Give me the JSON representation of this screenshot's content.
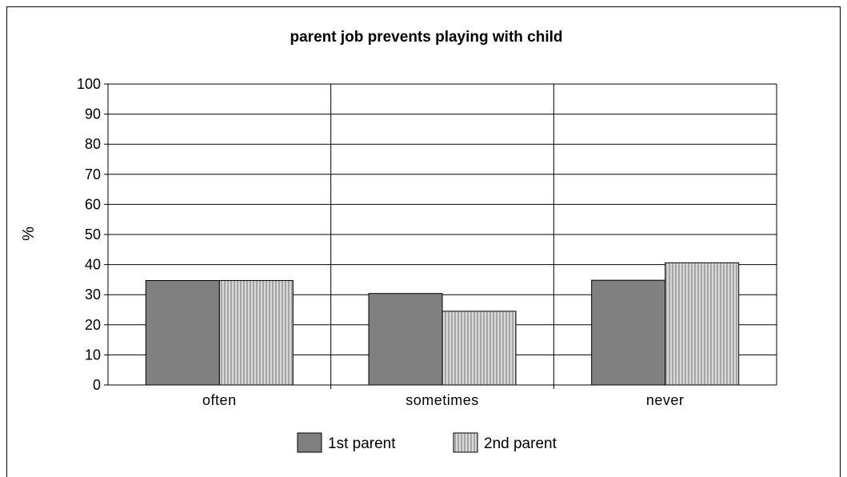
{
  "chart_data": {
    "type": "bar",
    "title": "parent job prevents playing with child",
    "xlabel": "",
    "ylabel": "%",
    "ylim": [
      0,
      100
    ],
    "yticks": [
      0,
      10,
      20,
      30,
      40,
      50,
      60,
      70,
      80,
      90,
      100
    ],
    "categories": [
      "often",
      "sometimes",
      "never"
    ],
    "series": [
      {
        "name": "1st parent",
        "values": [
          34.7,
          30.4,
          34.8
        ],
        "color": "#808080",
        "pattern": "solid"
      },
      {
        "name": "2nd parent",
        "values": [
          34.7,
          24.5,
          40.6
        ],
        "color": "#c0c0c0",
        "pattern": "vertical-stripes"
      }
    ],
    "grid": true,
    "legend_position": "bottom"
  }
}
